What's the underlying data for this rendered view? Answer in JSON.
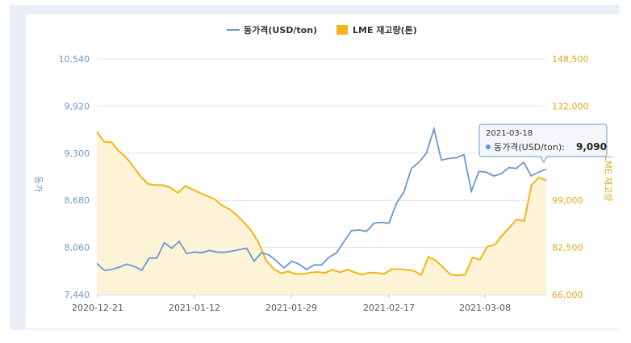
{
  "chart_data": {
    "type": "line",
    "x_ticks": [
      "2020-12-21",
      "2021-01-12",
      "2021-01-29",
      "2021-02-17",
      "2021-03-08"
    ],
    "y_left": {
      "ticks": [
        "7,440",
        "8,060",
        "8,680",
        "9,300",
        "9,920",
        "10,540"
      ],
      "range": [
        7440,
        10540
      ],
      "title": "동가"
    },
    "y_right": {
      "ticks": [
        "66,000",
        "82,500",
        "99,000",
        "115,500",
        "132,000",
        "148,500"
      ],
      "range": [
        66000,
        148500
      ],
      "title": "LME 재고량"
    },
    "grid": true,
    "legend_position": "top-center",
    "series": [
      {
        "name": "동가격(USD/ton)",
        "color": "#6b98d0",
        "axis": "left",
        "values": [
          7850,
          7760,
          7770,
          7800,
          7840,
          7810,
          7760,
          7920,
          7920,
          8120,
          8050,
          8140,
          7980,
          8000,
          7990,
          8020,
          8000,
          7995,
          8010,
          8030,
          8050,
          7880,
          7990,
          7960,
          7880,
          7790,
          7880,
          7840,
          7770,
          7830,
          7830,
          7930,
          7990,
          8140,
          8280,
          8290,
          8270,
          8380,
          8390,
          8380,
          8640,
          8790,
          9100,
          9180,
          9300,
          9620,
          9210,
          9230,
          9240,
          9280,
          8800,
          9060,
          9050,
          9000,
          9030,
          9110,
          9100,
          9180,
          9000,
          9050,
          9090
        ]
      },
      {
        "name": "LME 재고량(톤)",
        "color": "#f4b41a",
        "fill": "#fdf3d6",
        "axis": "right",
        "values": [
          123000,
          119500,
          119300,
          116200,
          114000,
          110700,
          107200,
          104700,
          104300,
          104300,
          103400,
          101600,
          104000,
          102800,
          101600,
          100500,
          99400,
          97200,
          95900,
          93800,
          91200,
          88200,
          84000,
          77900,
          75000,
          73500,
          74100,
          73200,
          73200,
          73700,
          73900,
          73600,
          74700,
          73800,
          74800,
          73800,
          73000,
          73700,
          73600,
          73200,
          74900,
          74900,
          74700,
          74400,
          72900,
          79100,
          78000,
          75400,
          73000,
          72700,
          73000,
          79000,
          78200,
          82800,
          83400,
          86700,
          89500,
          92300,
          91700,
          104300,
          107000,
          106000
        ]
      }
    ],
    "tooltip": {
      "date": "2021-03-18",
      "label": "동가격(USD/ton):",
      "value": "9,090"
    }
  }
}
